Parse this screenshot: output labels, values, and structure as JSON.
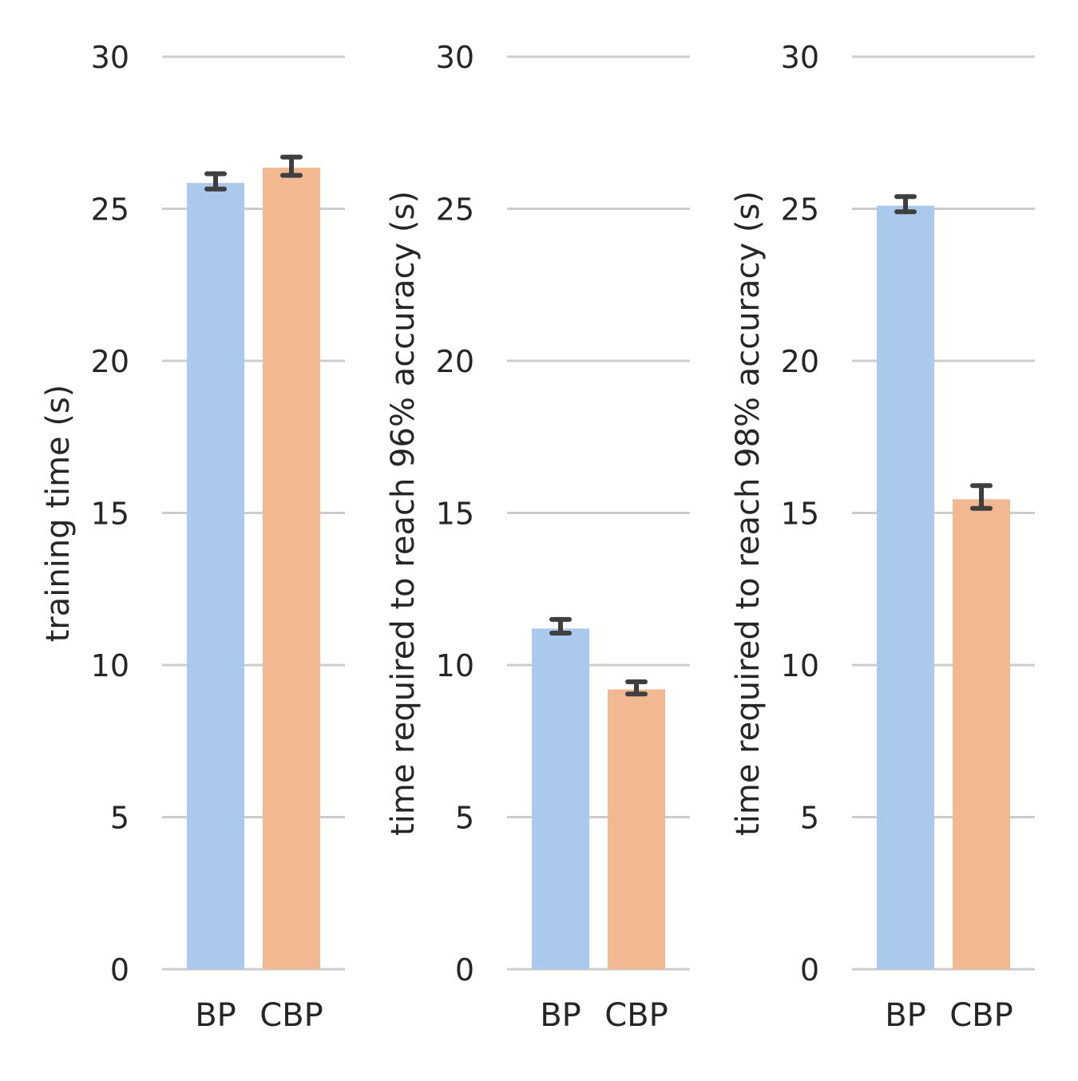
{
  "colors": {
    "BP": "#abc9ec",
    "CBP": "#f1b891",
    "grid": "#cccccc",
    "error_bar": "#3f3f3f",
    "text": "#262626"
  },
  "chart_data": [
    {
      "type": "bar",
      "categories": [
        "BP",
        "CBP"
      ],
      "values": [
        25.85,
        26.35
      ],
      "error_low": [
        25.65,
        26.1
      ],
      "error_high": [
        26.15,
        26.7
      ],
      "title": "",
      "xlabel": "",
      "ylabel": "training time (s)",
      "ylim": [
        0,
        30
      ],
      "yticks": [
        "0",
        "5",
        "10",
        "15",
        "20",
        "25",
        "30"
      ],
      "grid": true
    },
    {
      "type": "bar",
      "categories": [
        "BP",
        "CBP"
      ],
      "values": [
        11.2,
        9.2
      ],
      "error_low": [
        11.05,
        9.05
      ],
      "error_high": [
        11.5,
        9.45
      ],
      "title": "",
      "xlabel": "",
      "ylabel": "time required to reach 96% accuracy (s)",
      "ylim": [
        0,
        30
      ],
      "yticks": [
        "0",
        "5",
        "10",
        "15",
        "20",
        "25",
        "30"
      ],
      "grid": true
    },
    {
      "type": "bar",
      "categories": [
        "BP",
        "CBP"
      ],
      "values": [
        25.1,
        15.45
      ],
      "error_low": [
        24.9,
        15.15
      ],
      "error_high": [
        25.4,
        15.9
      ],
      "title": "",
      "xlabel": "",
      "ylabel": "time required to reach 98% accuracy (s)",
      "ylim": [
        0,
        30
      ],
      "yticks": [
        "0",
        "5",
        "10",
        "15",
        "20",
        "25",
        "30"
      ],
      "grid": true
    }
  ]
}
